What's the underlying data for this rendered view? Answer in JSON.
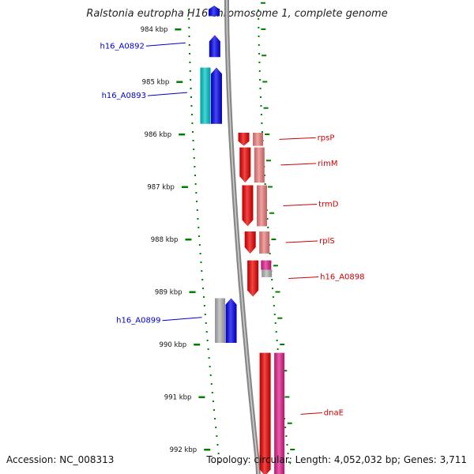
{
  "title": "Ralstonia eutropha H16 chromosome 1, complete genome",
  "footer": {
    "accession": "Accession: NC_008313",
    "topology": "Topology: circular; Length: 4,052,032 bp; Genes: 3,711"
  },
  "ticks": [
    {
      "label": "984 kbp",
      "kbp": 984
    },
    {
      "label": "985 kbp",
      "kbp": 985
    },
    {
      "label": "986 kbp",
      "kbp": 986
    },
    {
      "label": "987 kbp",
      "kbp": 987
    },
    {
      "label": "988 kbp",
      "kbp": 988
    },
    {
      "label": "989 kbp",
      "kbp": 989
    },
    {
      "label": "990 kbp",
      "kbp": 990
    },
    {
      "label": "991 kbp",
      "kbp": 991
    },
    {
      "label": "992 kbp",
      "kbp": 992
    }
  ],
  "genes": [
    {
      "name": "",
      "strand": "-",
      "color": "#0000ee",
      "start": 983.55,
      "end": 983.75
    },
    {
      "name": "h16_A0892",
      "strand": "-",
      "color": "#0000ee",
      "start": 984.11,
      "end": 984.53
    },
    {
      "name": "h16_A0893",
      "strand": "-",
      "color": "#0000ee",
      "start": 984.73,
      "end": 985.8
    },
    {
      "name": "rpsP",
      "strand": "+",
      "color": "#ee0000",
      "start": 985.97,
      "end": 986.22
    },
    {
      "name": "rimM",
      "strand": "+",
      "color": "#ee0000",
      "start": 986.25,
      "end": 986.92
    },
    {
      "name": "trmD",
      "strand": "+",
      "color": "#ee0000",
      "start": 986.97,
      "end": 987.75
    },
    {
      "name": "rplS",
      "strand": "+",
      "color": "#ee0000",
      "start": 987.85,
      "end": 988.27
    },
    {
      "name": "h16_A0898",
      "strand": "+",
      "color": "#ee0000",
      "start": 988.4,
      "end": 989.09
    },
    {
      "name": "h16_A0899",
      "strand": "-",
      "color": "#0000ee",
      "start": 989.12,
      "end": 989.97
    },
    {
      "name": "dnaE",
      "strand": "+",
      "color": "#ee0000",
      "start": 990.16,
      "end": 992.5
    }
  ],
  "features": [
    {
      "track": "minus-inner",
      "color": "#00c8c8",
      "start": 984.73,
      "end": 985.8
    },
    {
      "track": "minus-inner",
      "color": "#b4b4b4",
      "start": 989.12,
      "end": 989.97
    },
    {
      "track": "plus-inner",
      "color": "#f08080",
      "start": 985.97,
      "end": 986.22
    },
    {
      "track": "plus-inner",
      "color": "#f08080",
      "start": 986.25,
      "end": 986.92
    },
    {
      "track": "plus-inner",
      "color": "#f08080",
      "start": 986.97,
      "end": 987.75
    },
    {
      "track": "plus-inner",
      "color": "#f08080",
      "start": 987.85,
      "end": 988.27
    },
    {
      "track": "plus-inner",
      "color": "#e0208c",
      "start": 988.4,
      "end": 988.58
    },
    {
      "track": "plus-inner",
      "color": "#b4b4b4",
      "start": 988.58,
      "end": 988.72
    },
    {
      "track": "plus-inner",
      "color": "#e0208c",
      "start": 990.16,
      "end": 992.5
    }
  ],
  "colors": {
    "plus_label": "#cc0000",
    "minus_label": "#0000cc",
    "tick": "#008000",
    "backbone": "#888888"
  }
}
